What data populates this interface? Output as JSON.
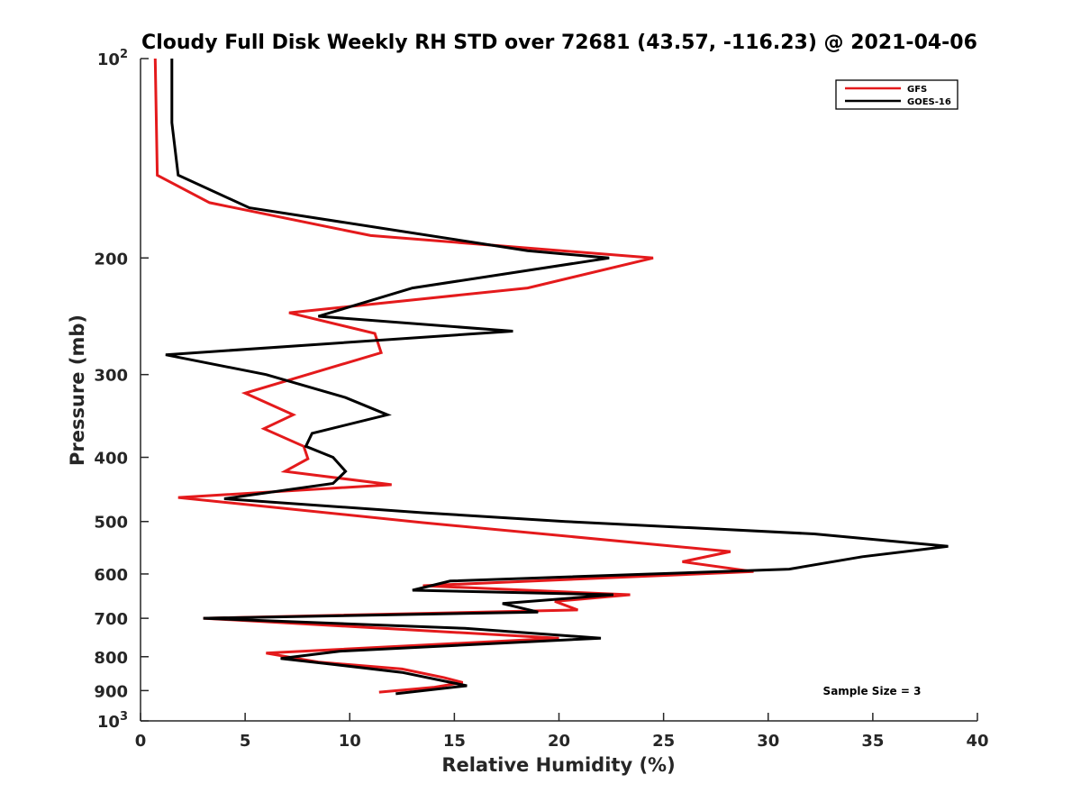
{
  "chart_data": {
    "type": "line",
    "title": "Cloudy Full Disk Weekly RH STD over 72681 (43.57, -116.23) @ 2021-04-06",
    "xlabel": "Relative Humidity (%)",
    "ylabel": "Pressure (mb)",
    "xlim": [
      0,
      40
    ],
    "ylim": [
      100,
      1000
    ],
    "y_scale": "log",
    "y_reversed": true,
    "x_ticks": [
      "0",
      "5",
      "10",
      "15",
      "20",
      "25",
      "30",
      "35",
      "40"
    ],
    "y_ticks": [
      {
        "value": 100,
        "base": "10",
        "exp": "2"
      },
      {
        "value": 200,
        "label": "200"
      },
      {
        "value": 300,
        "label": "300"
      },
      {
        "value": 400,
        "label": "400"
      },
      {
        "value": 500,
        "label": "500"
      },
      {
        "value": 600,
        "label": "600"
      },
      {
        "value": 700,
        "label": "700"
      },
      {
        "value": 800,
        "label": "800"
      },
      {
        "value": 900,
        "label": "900"
      },
      {
        "value": 1000,
        "base": "10",
        "exp": "3"
      }
    ],
    "grid": false,
    "legend_position": "top-right",
    "series": [
      {
        "name": "GFS",
        "color": "#e41a1c",
        "points": [
          [
            0.7,
            100
          ],
          [
            0.8,
            150
          ],
          [
            3.3,
            165
          ],
          [
            11.0,
            185
          ],
          [
            24.5,
            200
          ],
          [
            18.5,
            222
          ],
          [
            7.1,
            242
          ],
          [
            11.2,
            260
          ],
          [
            11.5,
            278
          ],
          [
            5.0,
            320
          ],
          [
            7.3,
            345
          ],
          [
            5.9,
            362
          ],
          [
            7.8,
            385
          ],
          [
            8.0,
            402
          ],
          [
            6.9,
            420
          ],
          [
            12.0,
            440
          ],
          [
            1.8,
            460
          ],
          [
            13.5,
            502
          ],
          [
            28.2,
            555
          ],
          [
            25.9,
            575
          ],
          [
            29.3,
            595
          ],
          [
            13.5,
            625
          ],
          [
            23.4,
            645
          ],
          [
            19.8,
            660
          ],
          [
            20.9,
            680
          ],
          [
            3.0,
            700
          ],
          [
            20.0,
            750
          ],
          [
            6.0,
            790
          ],
          [
            8.5,
            815
          ],
          [
            12.5,
            835
          ],
          [
            14.5,
            860
          ],
          [
            15.4,
            875
          ],
          [
            14.0,
            890
          ],
          [
            11.4,
            905
          ]
        ]
      },
      {
        "name": "GOES-16",
        "color": "#000000",
        "points": [
          [
            1.5,
            100
          ],
          [
            1.5,
            125
          ],
          [
            1.8,
            150
          ],
          [
            5.2,
            168
          ],
          [
            18.5,
            195
          ],
          [
            22.4,
            200
          ],
          [
            13.0,
            222
          ],
          [
            8.5,
            245
          ],
          [
            17.8,
            258
          ],
          [
            1.2,
            280
          ],
          [
            6.0,
            300
          ],
          [
            9.8,
            325
          ],
          [
            11.8,
            345
          ],
          [
            8.2,
            368
          ],
          [
            7.9,
            385
          ],
          [
            9.2,
            400
          ],
          [
            9.8,
            420
          ],
          [
            9.2,
            438
          ],
          [
            4.0,
            462
          ],
          [
            13.5,
            485
          ],
          [
            20.3,
            500
          ],
          [
            32.2,
            522
          ],
          [
            38.6,
            545
          ],
          [
            34.5,
            565
          ],
          [
            31.0,
            590
          ],
          [
            14.8,
            615
          ],
          [
            13.0,
            635
          ],
          [
            22.6,
            645
          ],
          [
            17.3,
            665
          ],
          [
            19.0,
            685
          ],
          [
            3.0,
            700
          ],
          [
            15.5,
            725
          ],
          [
            22.0,
            750
          ],
          [
            9.5,
            785
          ],
          [
            6.7,
            805
          ],
          [
            9.0,
            820
          ],
          [
            12.5,
            845
          ],
          [
            15.6,
            885
          ],
          [
            12.2,
            910
          ]
        ]
      }
    ],
    "annotations": [
      {
        "text": "Sample Size = 3",
        "position": "bottom-right"
      }
    ]
  }
}
